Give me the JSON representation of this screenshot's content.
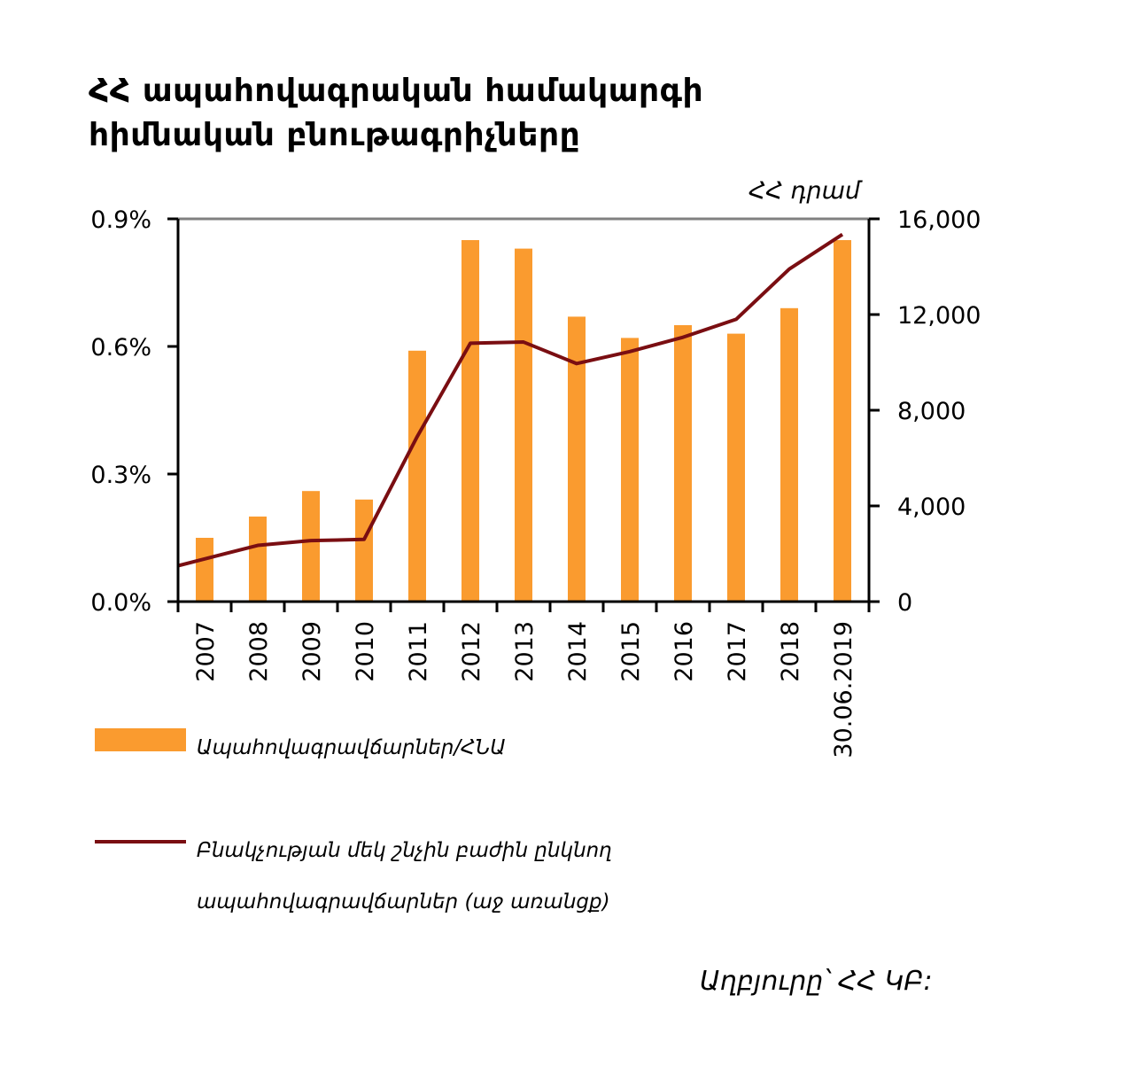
{
  "title_lines": [
    "ՀՀ ապահովագրական համակարգի",
    "հիմնական բնութագրիչները"
  ],
  "source": "Աղբյուրը՝ ՀՀ ԿԲ:",
  "colors": {
    "bar": "#fa9b2f",
    "line": "#7a0e12",
    "axis": "#000000",
    "top_border": "#808080"
  },
  "chart_data": {
    "type": "bar",
    "categories": [
      "2007",
      "2008",
      "2009",
      "2010",
      "2011",
      "2012",
      "2013",
      "2014",
      "2015",
      "2016",
      "2017",
      "2018",
      "30.06.2019"
    ],
    "left_axis": {
      "ticks": [
        "0.0%",
        "0.3%",
        "0.6%",
        "0.9%"
      ],
      "range": [
        0,
        0.9
      ]
    },
    "right_axis": {
      "unit": "ՀՀ դրամ",
      "ticks": [
        "0",
        "4,000",
        "8,000",
        "12,000",
        "16,000"
      ],
      "range": [
        0,
        16000
      ]
    },
    "series": [
      {
        "name": "Ապահովագրավճարներ/ՀՆԱ",
        "type": "bar",
        "axis": "left",
        "values": [
          0.15,
          0.2,
          0.26,
          0.24,
          0.59,
          0.85,
          0.83,
          0.67,
          0.62,
          0.65,
          0.63,
          0.69,
          0.85
        ]
      },
      {
        "name": "Բնակչության մեկ շնչին բաժին ընկնող ապահովագրավճարներ (աջ առանցք)",
        "type": "line",
        "axis": "right",
        "values": [
          1500,
          2350,
          2550,
          2600,
          6900,
          10800,
          10850,
          9950,
          10450,
          11050,
          11800,
          13900,
          15350
        ]
      }
    ],
    "legend": [
      {
        "label": "Ապահովագրավճարներ/ՀՆԱ",
        "kind": "bar"
      },
      {
        "label_lines": [
          "Բնակչության մեկ շնչին բաժին ընկնող",
          "ապահովագրավճարներ (աջ առանցք)"
        ],
        "kind": "line"
      }
    ]
  }
}
